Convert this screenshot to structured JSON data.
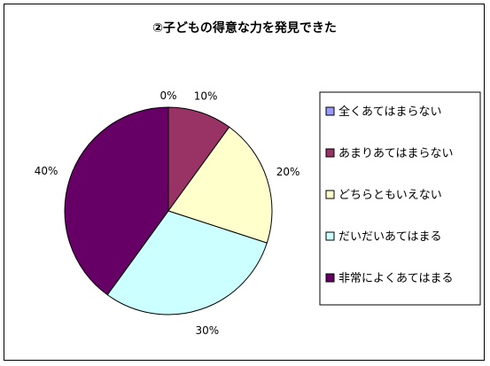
{
  "chart_data": {
    "type": "pie",
    "title": "②子どもの得意な力を発見できた",
    "categories": [
      "全くあてはまらない",
      "あまりあてはまらない",
      "どちらともいえない",
      "だいだいあてはまる",
      "非常によくあてはまる"
    ],
    "values": [
      0,
      10,
      20,
      30,
      40
    ],
    "labels": [
      "0%",
      "10%",
      "20%",
      "30%",
      "40%"
    ],
    "colors": [
      "#9999FF",
      "#993366",
      "#FFFFCC",
      "#CCFFFF",
      "#660066"
    ],
    "legend_position": "right",
    "start_angle": "12 o'clock",
    "direction": "clockwise"
  }
}
